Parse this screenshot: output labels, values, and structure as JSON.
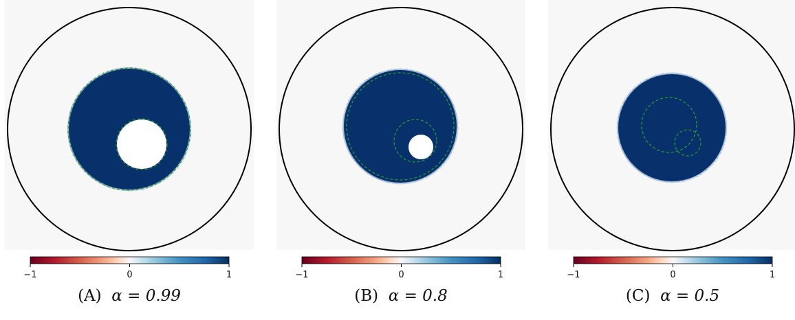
{
  "colorbar": {
    "ticks": [
      "−1",
      "0",
      "1"
    ],
    "colors": {
      "neg": "#67001f",
      "mid": "#f7f7f7",
      "pos": "#053061"
    }
  },
  "panels": [
    {
      "label": "(A)",
      "alpha_label": "α = 0.99"
    },
    {
      "label": "(B)",
      "alpha_label": "α = 0.8"
    },
    {
      "label": "(C)",
      "alpha_label": "α = 0.5"
    }
  ],
  "colors": {
    "background": "#f7f7f7",
    "fill": "#08306b",
    "guide": "#2ca02c",
    "outline": "#000000"
  }
}
